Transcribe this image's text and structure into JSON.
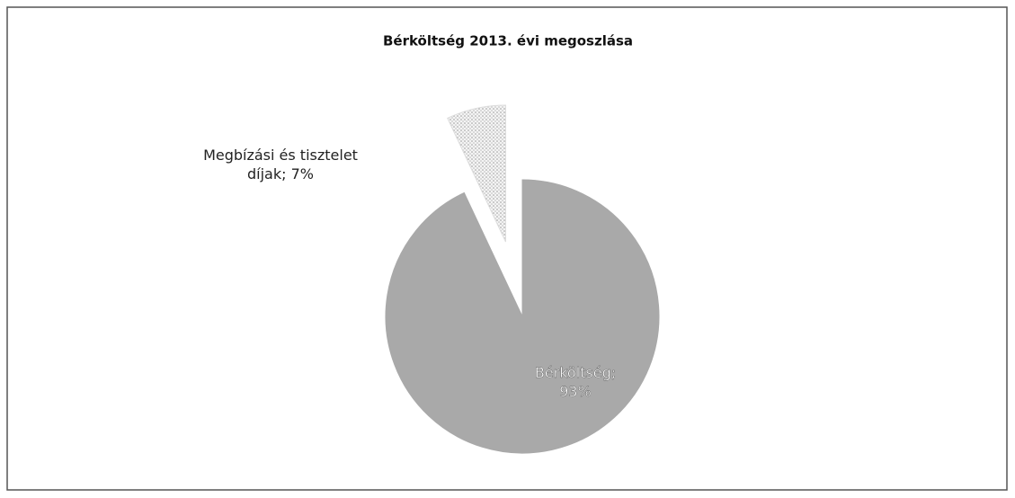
{
  "chart_data": {
    "type": "pie",
    "title": "Bérköltség 2013. évi megoszlása",
    "values": [
      93,
      7
    ],
    "value_labels": [
      "Bérköltség; 93%",
      "Megbízási és tisztelet díjak; 7%"
    ],
    "colors": [
      "#a9a9a9",
      "#e6e6e6"
    ]
  }
}
